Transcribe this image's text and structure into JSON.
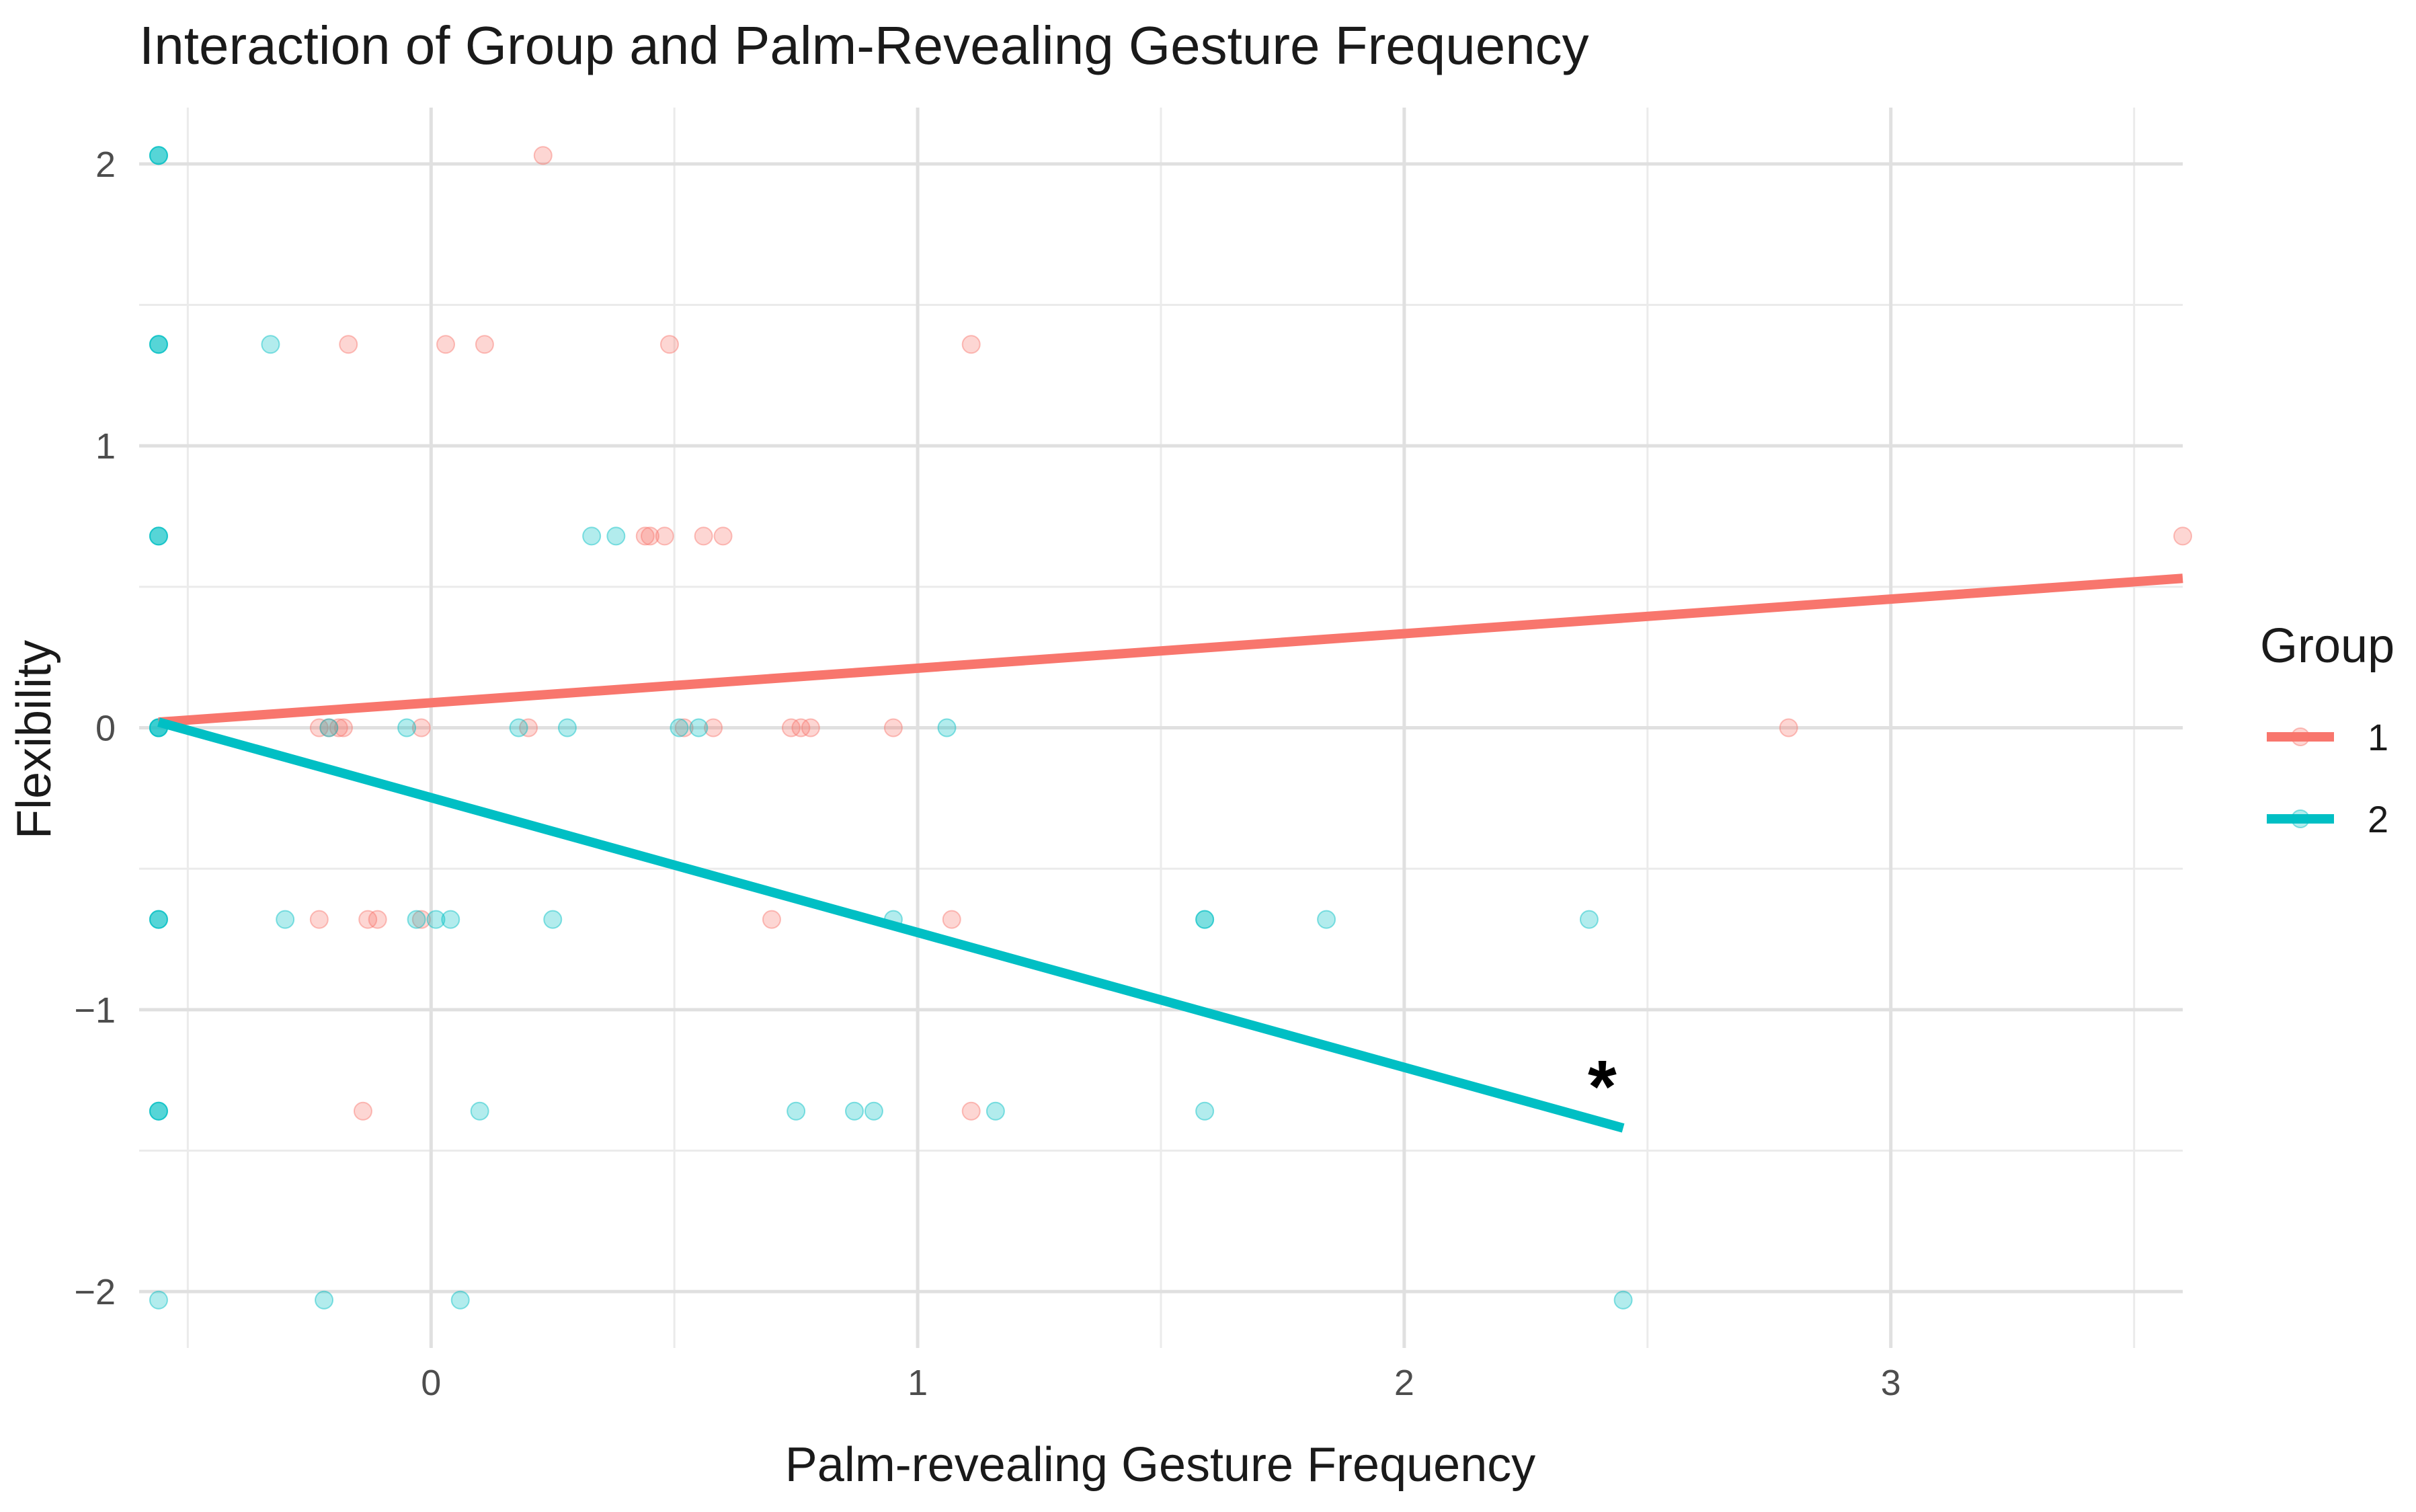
{
  "chart_data": {
    "type": "scatter",
    "title": "Interaction of Group and Palm-Revealing Gesture Frequency",
    "xlabel": "Palm-revealing Gesture Frequency",
    "ylabel": "Flexibility",
    "xlim": [
      -0.6,
      3.6
    ],
    "ylim": [
      -2.2,
      2.2
    ],
    "x_ticks": [
      0,
      1,
      2,
      3
    ],
    "x_tick_labels": [
      "0",
      "1",
      "2",
      "3"
    ],
    "y_ticks": [
      -2,
      -1,
      0,
      1,
      2
    ],
    "y_tick_labels": [
      "−2",
      "−1",
      "0",
      "1",
      "2"
    ],
    "grid": true,
    "legend": {
      "title": "Group",
      "position": "right"
    },
    "annotation": {
      "text": "*",
      "x": 2.4,
      "y": -1.22
    },
    "series": [
      {
        "name": "1",
        "color": "#F8766D",
        "trend_line": {
          "x": [
            -0.56,
            3.6
          ],
          "y": [
            0.02,
            0.53
          ]
        },
        "points": [
          {
            "x": 0.23,
            "y": 2.03
          },
          {
            "x": -0.17,
            "y": 1.36
          },
          {
            "x": 0.03,
            "y": 1.36
          },
          {
            "x": 0.11,
            "y": 1.36
          },
          {
            "x": 0.49,
            "y": 1.36
          },
          {
            "x": 1.11,
            "y": 1.36
          },
          {
            "x": 0.44,
            "y": 0.68
          },
          {
            "x": 0.45,
            "y": 0.68
          },
          {
            "x": 0.48,
            "y": 0.68
          },
          {
            "x": 0.56,
            "y": 0.68
          },
          {
            "x": 0.6,
            "y": 0.68
          },
          {
            "x": 3.6,
            "y": 0.68
          },
          {
            "x": -0.23,
            "y": 0
          },
          {
            "x": -0.21,
            "y": 0
          },
          {
            "x": -0.19,
            "y": 0
          },
          {
            "x": -0.18,
            "y": 0
          },
          {
            "x": -0.02,
            "y": 0
          },
          {
            "x": 0.2,
            "y": 0
          },
          {
            "x": 0.52,
            "y": 0
          },
          {
            "x": 0.58,
            "y": 0
          },
          {
            "x": 0.74,
            "y": 0
          },
          {
            "x": 0.76,
            "y": 0
          },
          {
            "x": 0.78,
            "y": 0
          },
          {
            "x": 0.95,
            "y": 0
          },
          {
            "x": 2.79,
            "y": 0
          },
          {
            "x": -0.23,
            "y": -0.68
          },
          {
            "x": -0.13,
            "y": -0.68
          },
          {
            "x": -0.11,
            "y": -0.68
          },
          {
            "x": -0.02,
            "y": -0.68
          },
          {
            "x": 0.7,
            "y": -0.68
          },
          {
            "x": 1.07,
            "y": -0.68
          },
          {
            "x": -0.14,
            "y": -1.36
          },
          {
            "x": 1.11,
            "y": -1.36
          }
        ]
      },
      {
        "name": "2",
        "color": "#00BFC4",
        "trend_line": {
          "x": [
            -0.56,
            2.45
          ],
          "y": [
            0.02,
            -1.42
          ]
        },
        "points": [
          {
            "x": -0.56,
            "y": 2.03
          },
          {
            "x": -0.56,
            "y": 2.03
          },
          {
            "x": -0.56,
            "y": 2.03
          },
          {
            "x": -0.56,
            "y": 1.36
          },
          {
            "x": -0.56,
            "y": 1.36
          },
          {
            "x": -0.56,
            "y": 1.36
          },
          {
            "x": -0.33,
            "y": 1.36
          },
          {
            "x": -0.56,
            "y": 0.68
          },
          {
            "x": -0.56,
            "y": 0.68
          },
          {
            "x": -0.56,
            "y": 0.68
          },
          {
            "x": 0.33,
            "y": 0.68
          },
          {
            "x": 0.38,
            "y": 0.68
          },
          {
            "x": -0.56,
            "y": 0
          },
          {
            "x": -0.56,
            "y": 0
          },
          {
            "x": -0.56,
            "y": 0
          },
          {
            "x": -0.56,
            "y": 0
          },
          {
            "x": -0.21,
            "y": 0
          },
          {
            "x": -0.05,
            "y": 0
          },
          {
            "x": 0.18,
            "y": 0
          },
          {
            "x": 0.28,
            "y": 0
          },
          {
            "x": 0.51,
            "y": 0
          },
          {
            "x": 0.55,
            "y": 0
          },
          {
            "x": 1.06,
            "y": 0
          },
          {
            "x": -0.56,
            "y": -0.68
          },
          {
            "x": -0.56,
            "y": -0.68
          },
          {
            "x": -0.56,
            "y": -0.68
          },
          {
            "x": -0.3,
            "y": -0.68
          },
          {
            "x": -0.03,
            "y": -0.68
          },
          {
            "x": 0.01,
            "y": -0.68
          },
          {
            "x": 0.04,
            "y": -0.68
          },
          {
            "x": 0.25,
            "y": -0.68
          },
          {
            "x": 0.95,
            "y": -0.68
          },
          {
            "x": 1.59,
            "y": -0.68
          },
          {
            "x": 1.59,
            "y": -0.68
          },
          {
            "x": 1.84,
            "y": -0.68
          },
          {
            "x": 2.38,
            "y": -0.68
          },
          {
            "x": -0.56,
            "y": -1.36
          },
          {
            "x": -0.56,
            "y": -1.36
          },
          {
            "x": -0.56,
            "y": -1.36
          },
          {
            "x": 0.1,
            "y": -1.36
          },
          {
            "x": 0.75,
            "y": -1.36
          },
          {
            "x": 0.87,
            "y": -1.36
          },
          {
            "x": 0.91,
            "y": -1.36
          },
          {
            "x": 1.16,
            "y": -1.36
          },
          {
            "x": 1.59,
            "y": -1.36
          },
          {
            "x": -0.56,
            "y": -2.03
          },
          {
            "x": -0.22,
            "y": -2.03
          },
          {
            "x": 0.06,
            "y": -2.03
          },
          {
            "x": 2.45,
            "y": -2.03
          }
        ]
      }
    ]
  }
}
